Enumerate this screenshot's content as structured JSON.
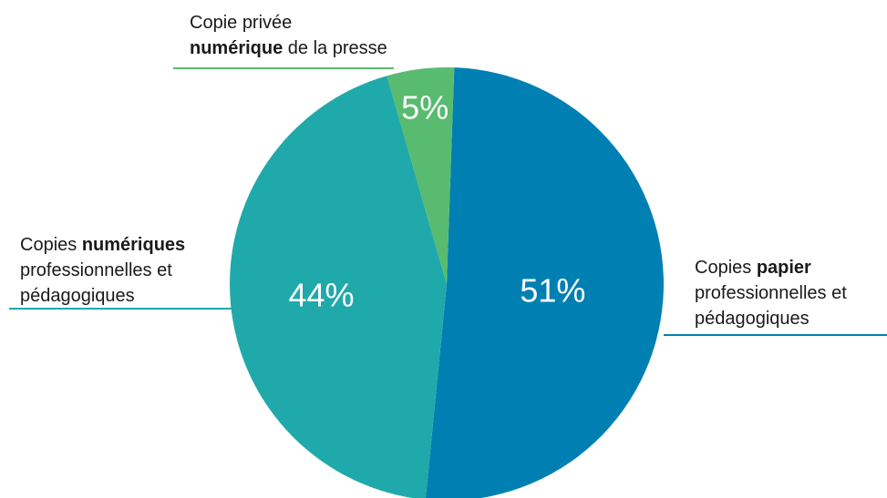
{
  "chart_data": {
    "type": "pie",
    "title": "",
    "slices": [
      {
        "label_parts": [
          "Copies ",
          "papier",
          " professionnelles et pédagogiques"
        ],
        "value": 51,
        "value_label": "51%",
        "color": "#0080b2"
      },
      {
        "label_parts": [
          "Copies ",
          "numériques",
          " professionnelles et pédagogiques"
        ],
        "value": 44,
        "value_label": "44%",
        "color": "#20a9ab"
      },
      {
        "label_parts": [
          "Copie privée ",
          "numérique",
          " de la presse"
        ],
        "value": 5,
        "value_label": "5%",
        "color": "#58bb6f"
      }
    ]
  }
}
